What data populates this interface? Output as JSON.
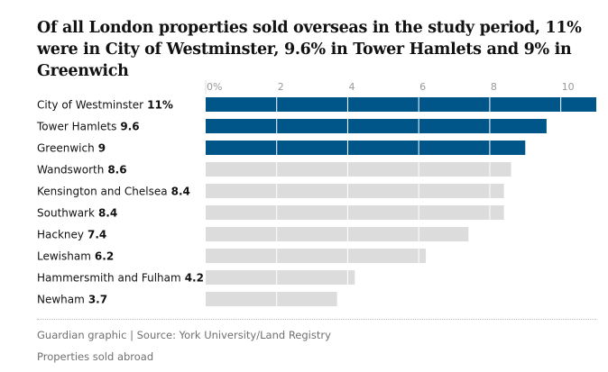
{
  "chart_data": {
    "type": "bar",
    "orientation": "horizontal",
    "title": "Of all London properties sold overseas in the study period, 11% were in City of Westminster, 9.6% in Tower Hamlets and 9% in Greenwich",
    "categories": [
      "City of Westminster",
      "Tower Hamlets",
      "Greenwich",
      "Wandsworth",
      "Kensington and Chelsea",
      "Southwark",
      "Hackney",
      "Lewisham",
      "Hammersmith and Fulham",
      "Newham"
    ],
    "values": [
      11,
      9.6,
      9,
      8.6,
      8.4,
      8.4,
      7.4,
      6.2,
      4.2,
      3.7
    ],
    "value_labels": [
      "11%",
      "9.6",
      "9",
      "8.6",
      "8.4",
      "8.4",
      "7.4",
      "6.2",
      "4.2",
      "3.7"
    ],
    "highlighted": [
      true,
      true,
      true,
      false,
      false,
      false,
      false,
      false,
      false,
      false
    ],
    "x_ticks": [
      0,
      2,
      4,
      6,
      8,
      10
    ],
    "x_tick_labels": [
      "0%",
      "2",
      "4",
      "6",
      "8",
      "10"
    ],
    "xlim": [
      0,
      11
    ],
    "grid": true,
    "legend": "none",
    "colors": {
      "highlight": "#005689",
      "default": "#dcdcdc",
      "gridline": "#ffffff",
      "tick_text": "#999999"
    }
  },
  "footer": {
    "source": "Guardian graphic | Source: York University/Land Registry",
    "note": "Properties sold abroad"
  }
}
